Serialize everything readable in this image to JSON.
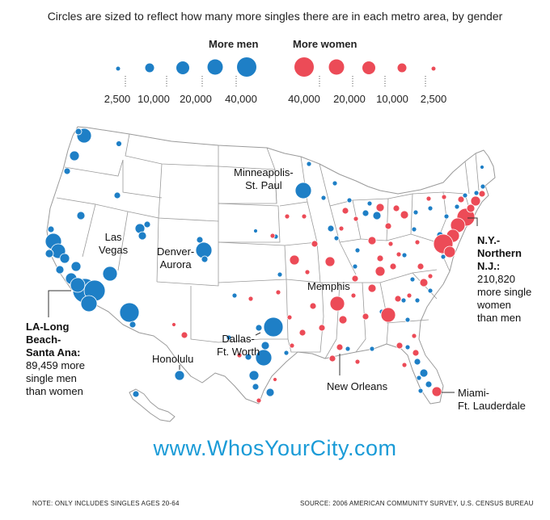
{
  "subtitle": "Circles are sized to reflect how many more singles there are in each metro area, by gender",
  "colors": {
    "men": "#1e7fc6",
    "women": "#ec4b57",
    "map_fill": "#ffffff",
    "map_stroke": "#9a9a9a",
    "url": "#1a9bd7"
  },
  "legend": {
    "men_title": "More men",
    "women_title": "More women",
    "men_scale": [
      {
        "label": "2,500",
        "value": 2500
      },
      {
        "label": "10,000",
        "value": 10000
      },
      {
        "label": "20,000",
        "value": 20000
      },
      {
        "label": "40,000",
        "value": 40000
      }
    ],
    "women_scale": [
      {
        "label": "40,000",
        "value": 40000
      },
      {
        "label": "20,000",
        "value": 20000
      },
      {
        "label": "10,000",
        "value": 10000
      },
      {
        "label": "2,500",
        "value": 2500
      }
    ]
  },
  "labels": {
    "minneapolis": "Minneapolis-\nSt. Paul",
    "las_vegas": "Las\nVegas",
    "denver": "Denver-\nAurora",
    "memphis": "Memphis",
    "dallas": "Dallas-\nFt. Worth",
    "honolulu": "Honolulu",
    "new_orleans": "New Orleans",
    "miami": "Miami-\nFt. Lauderdale",
    "la_title": "LA-Long\nBeach-\nSanta Ana:",
    "la_text": "89,459 more\nsingle men\nthan women",
    "ny_title": "N.Y.-\nNorthern\nN.J.:",
    "ny_text": "210,820\nmore single\nwomen\nthan men"
  },
  "url": "www.WhosYourCity.com",
  "note": "NOTE: ONLY INCLUDES SINGLES AGES 20-64",
  "source": "SOURCE: 2006 AMERICAN COMMUNITY SURVEY, U.S. CENSUS BUREAU"
}
